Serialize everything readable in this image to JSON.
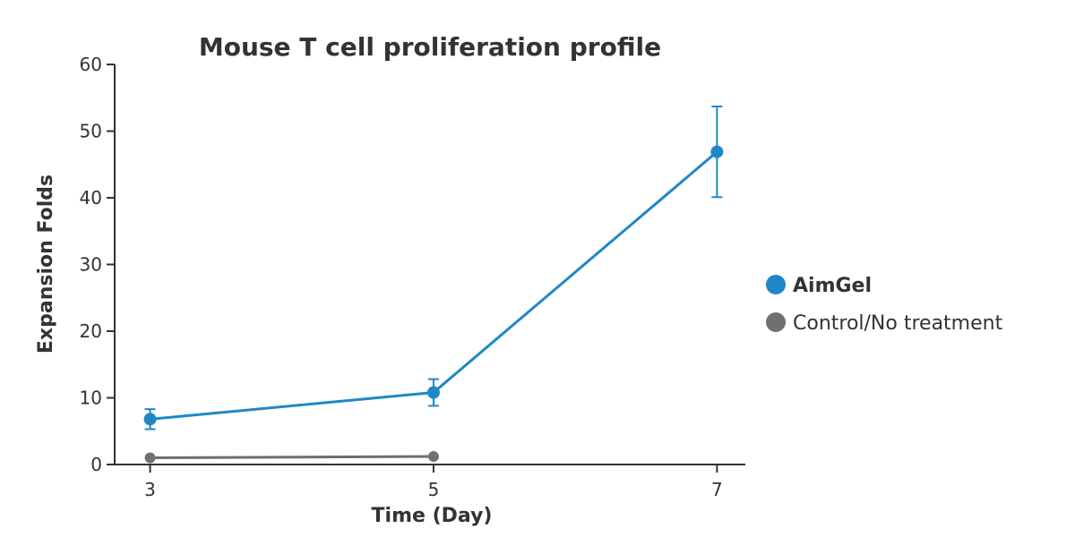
{
  "chart_data": {
    "type": "line",
    "title": "Mouse T cell proliferation profile",
    "xlabel": "Time (Day)",
    "ylabel": "Expansion Folds",
    "x_ticks": [
      3,
      5,
      7
    ],
    "y_ticks": [
      0,
      10,
      20,
      30,
      40,
      50,
      60
    ],
    "xlim": [
      2.75,
      7.2
    ],
    "ylim": [
      0,
      60
    ],
    "grid": false,
    "legend_position": "right",
    "series": [
      {
        "name": "AimGel",
        "color": "#1f87c8",
        "marker_color": "#1f87c8",
        "legend_bold": true,
        "x": [
          3,
          5,
          7
        ],
        "y": [
          6.8,
          10.8,
          46.9
        ],
        "error": [
          1.5,
          2.0,
          6.8
        ]
      },
      {
        "name": "Control/No treatment",
        "color": "#6d6d6d",
        "marker_color": "#707070",
        "legend_bold": false,
        "x": [
          3,
          5
        ],
        "y": [
          1.0,
          1.2
        ],
        "error": null
      }
    ]
  }
}
